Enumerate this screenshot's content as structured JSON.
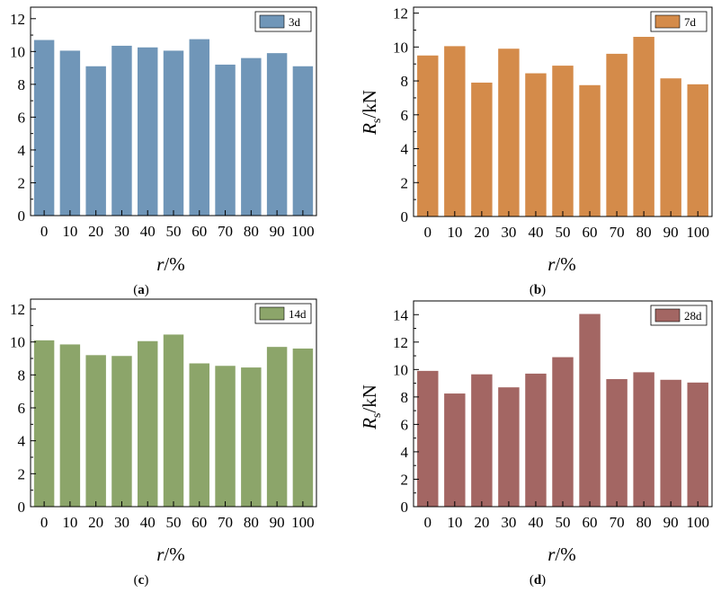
{
  "chart_data": [
    {
      "type": "bar",
      "panel_label": "(a)",
      "categories": [
        "0",
        "10",
        "20",
        "30",
        "40",
        "50",
        "60",
        "70",
        "80",
        "90",
        "100"
      ],
      "series": [
        {
          "name": "3d",
          "color": "#7096b8",
          "values": [
            10.7,
            10.05,
            9.1,
            10.35,
            10.25,
            10.05,
            10.75,
            9.2,
            9.6,
            9.9,
            9.1
          ]
        }
      ],
      "xlabel_main": "r",
      "xlabel_unit": "/%",
      "ylabel_main": "",
      "ylabel_sub": "",
      "ylabel_unit": "",
      "ylim": [
        0,
        12
      ],
      "yticks": [
        "0",
        "2",
        "4",
        "6",
        "8",
        "10",
        "12"
      ],
      "legend_position": "top-right",
      "grid": false
    },
    {
      "type": "bar",
      "panel_label": "(b)",
      "categories": [
        "0",
        "10",
        "20",
        "30",
        "40",
        "50",
        "60",
        "70",
        "80",
        "90",
        "100"
      ],
      "series": [
        {
          "name": "7d",
          "color": "#d48b4a",
          "values": [
            9.5,
            10.05,
            7.9,
            9.9,
            8.45,
            8.9,
            7.75,
            9.6,
            10.6,
            8.15,
            7.8
          ]
        }
      ],
      "xlabel_main": "r",
      "xlabel_unit": "/%",
      "ylabel_main": "R",
      "ylabel_sub": "s",
      "ylabel_unit": "/kN",
      "ylim": [
        0,
        12
      ],
      "yticks": [
        "0",
        "2",
        "4",
        "6",
        "8",
        "10",
        "12"
      ],
      "legend_position": "top-right",
      "grid": false
    },
    {
      "type": "bar",
      "panel_label": "(c)",
      "categories": [
        "0",
        "10",
        "20",
        "30",
        "40",
        "50",
        "60",
        "70",
        "80",
        "90",
        "100"
      ],
      "series": [
        {
          "name": "14d",
          "color": "#8ca56a",
          "values": [
            10.1,
            9.85,
            9.2,
            9.15,
            10.05,
            10.45,
            8.7,
            8.55,
            8.45,
            9.7,
            9.6
          ]
        }
      ],
      "xlabel_main": "r",
      "xlabel_unit": "/%",
      "ylabel_main": "",
      "ylabel_sub": "",
      "ylabel_unit": "",
      "ylim": [
        0,
        12
      ],
      "yticks": [
        "0",
        "2",
        "4",
        "6",
        "8",
        "10",
        "12"
      ],
      "legend_position": "top-right",
      "grid": false
    },
    {
      "type": "bar",
      "panel_label": "(d)",
      "categories": [
        "0",
        "10",
        "20",
        "30",
        "40",
        "50",
        "60",
        "70",
        "80",
        "90",
        "100"
      ],
      "series": [
        {
          "name": "28d",
          "color": "#a36663",
          "values": [
            9.9,
            8.25,
            9.65,
            8.7,
            9.7,
            10.9,
            14.05,
            9.3,
            9.8,
            9.25,
            9.05
          ]
        }
      ],
      "xlabel_main": "r",
      "xlabel_unit": "/%",
      "ylabel_main": "R",
      "ylabel_sub": "s",
      "ylabel_unit": "/kN",
      "ylim": [
        0,
        15
      ],
      "yticks": [
        "0",
        "2",
        "4",
        "6",
        "8",
        "10",
        "12",
        "14"
      ],
      "legend_position": "top-right",
      "grid": false
    }
  ]
}
